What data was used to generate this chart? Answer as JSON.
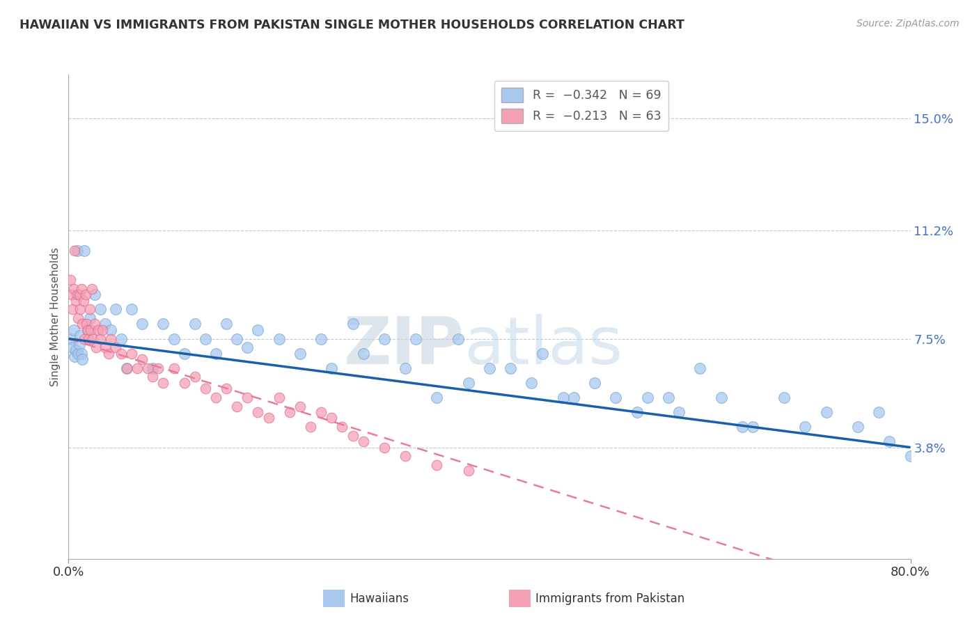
{
  "title": "HAWAIIAN VS IMMIGRANTS FROM PAKISTAN SINGLE MOTHER HOUSEHOLDS CORRELATION CHART",
  "source_text": "Source: ZipAtlas.com",
  "ylabel": "Single Mother Households",
  "watermark_zip": "ZIP",
  "watermark_atlas": "atlas",
  "xlim": [
    0.0,
    80.0
  ],
  "ylim": [
    0.0,
    16.5
  ],
  "yticks": [
    3.8,
    7.5,
    11.2,
    15.0
  ],
  "xticks": [
    0.0,
    80.0
  ],
  "xtick_labels": [
    "0.0%",
    "80.0%"
  ],
  "ytick_labels": [
    "3.8%",
    "7.5%",
    "11.2%",
    "15.0%"
  ],
  "hawaiian_color": "#a8c8f0",
  "hawaii_edge_color": "#7aaad0",
  "pakistan_color": "#f5a0b5",
  "pakistan_edge_color": "#e07090",
  "trend_hawaii_color": "#1a5faa",
  "trend_pakistan_color": "#e87a9a",
  "legend_label_hawaii": "R =  -0.342   N = 69",
  "legend_label_pakistan": "R =  -0.213   N = 63",
  "hawaii_R": -0.342,
  "hawaii_N": 69,
  "pakistan_R": -0.213,
  "pakistan_N": 63,
  "hawaii_scatter_x": [
    0.3,
    0.4,
    0.5,
    0.6,
    0.7,
    0.8,
    0.9,
    1.0,
    1.1,
    1.2,
    1.3,
    1.5,
    1.8,
    2.0,
    2.5,
    3.0,
    3.5,
    4.0,
    4.5,
    5.0,
    5.5,
    6.0,
    7.0,
    8.0,
    9.0,
    10.0,
    11.0,
    12.0,
    13.0,
    14.0,
    15.0,
    16.0,
    17.0,
    18.0,
    20.0,
    22.0,
    24.0,
    25.0,
    27.0,
    28.0,
    30.0,
    32.0,
    33.0,
    35.0,
    37.0,
    38.0,
    40.0,
    42.0,
    44.0,
    45.0,
    47.0,
    48.0,
    50.0,
    52.0,
    54.0,
    55.0,
    57.0,
    58.0,
    60.0,
    62.0,
    64.0,
    65.0,
    68.0,
    70.0,
    72.0,
    75.0,
    77.0,
    78.0,
    80.0
  ],
  "hawaii_scatter_y": [
    7.5,
    7.2,
    7.8,
    6.9,
    7.1,
    10.5,
    7.0,
    7.3,
    7.6,
    7.0,
    6.8,
    10.5,
    7.8,
    8.2,
    9.0,
    8.5,
    8.0,
    7.8,
    8.5,
    7.5,
    6.5,
    8.5,
    8.0,
    6.5,
    8.0,
    7.5,
    7.0,
    8.0,
    7.5,
    7.0,
    8.0,
    7.5,
    7.2,
    7.8,
    7.5,
    7.0,
    7.5,
    6.5,
    8.0,
    7.0,
    7.5,
    6.5,
    7.5,
    5.5,
    7.5,
    6.0,
    6.5,
    6.5,
    6.0,
    7.0,
    5.5,
    5.5,
    6.0,
    5.5,
    5.0,
    5.5,
    5.5,
    5.0,
    6.5,
    5.5,
    4.5,
    4.5,
    5.5,
    4.5,
    5.0,
    4.5,
    5.0,
    4.0,
    3.5
  ],
  "pakistan_scatter_x": [
    0.2,
    0.3,
    0.4,
    0.5,
    0.6,
    0.7,
    0.8,
    0.9,
    1.0,
    1.1,
    1.2,
    1.3,
    1.4,
    1.5,
    1.6,
    1.7,
    1.8,
    1.9,
    2.0,
    2.1,
    2.2,
    2.3,
    2.5,
    2.6,
    2.8,
    3.0,
    3.2,
    3.5,
    3.8,
    4.0,
    4.5,
    5.0,
    5.5,
    6.0,
    6.5,
    7.0,
    7.5,
    8.0,
    8.5,
    9.0,
    10.0,
    11.0,
    12.0,
    13.0,
    14.0,
    15.0,
    16.0,
    17.0,
    18.0,
    19.0,
    20.0,
    21.0,
    22.0,
    23.0,
    24.0,
    25.0,
    26.0,
    27.0,
    28.0,
    30.0,
    32.0,
    35.0,
    38.0
  ],
  "pakistan_scatter_y": [
    9.5,
    9.0,
    8.5,
    9.2,
    10.5,
    8.8,
    9.0,
    8.2,
    9.0,
    8.5,
    9.2,
    8.0,
    8.8,
    7.5,
    9.0,
    8.0,
    7.8,
    7.5,
    8.5,
    7.8,
    9.2,
    7.5,
    8.0,
    7.2,
    7.8,
    7.5,
    7.8,
    7.2,
    7.0,
    7.5,
    7.2,
    7.0,
    6.5,
    7.0,
    6.5,
    6.8,
    6.5,
    6.2,
    6.5,
    6.0,
    6.5,
    6.0,
    6.2,
    5.8,
    5.5,
    5.8,
    5.2,
    5.5,
    5.0,
    4.8,
    5.5,
    5.0,
    5.2,
    4.5,
    5.0,
    4.8,
    4.5,
    4.2,
    4.0,
    3.8,
    3.5,
    3.2,
    3.0
  ]
}
